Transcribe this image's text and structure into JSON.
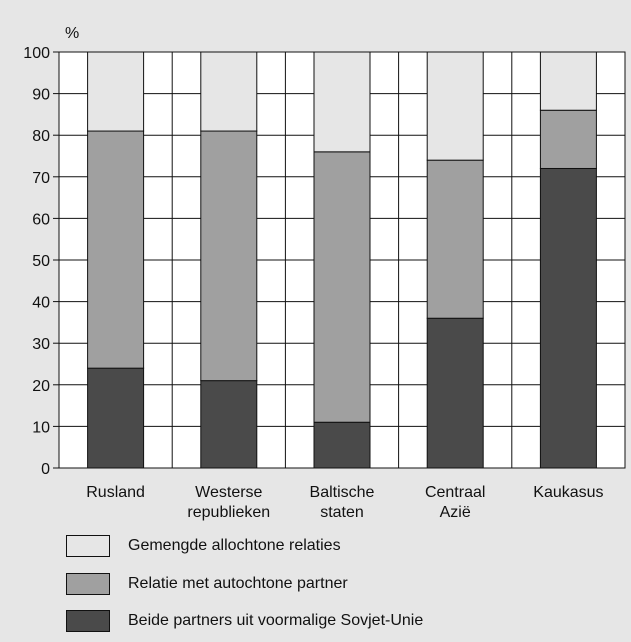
{
  "chart_data": {
    "type": "bar",
    "stacked": true,
    "y_unit": "%",
    "ylim": [
      0,
      100
    ],
    "yticks": [
      0,
      10,
      20,
      30,
      40,
      50,
      60,
      70,
      80,
      90,
      100
    ],
    "grid": true,
    "categories": [
      [
        "Rusland"
      ],
      [
        "Westerse",
        "republieken"
      ],
      [
        "Baltische",
        "staten"
      ],
      [
        "Centraal",
        "Azië"
      ],
      [
        "Kaukasus"
      ]
    ],
    "series": [
      {
        "name": "Beide partners uit voormalige Sovjet-Unie",
        "color": "#4a4a4a",
        "values": [
          24,
          21,
          11,
          36,
          72
        ]
      },
      {
        "name": "Relatie met autochtone partner",
        "color": "#a0a0a0",
        "values": [
          57,
          60,
          65,
          38,
          14
        ]
      },
      {
        "name": "Gemengde allochtone relaties",
        "color": "#e6e6e6",
        "values": [
          19,
          19,
          24,
          26,
          14
        ]
      }
    ],
    "legend": {
      "position": "bottom",
      "order": [
        "Gemengde allochtone relaties",
        "Relatie met autochtone partner",
        "Beide partners uit voormalige Sovjet-Unie"
      ]
    }
  }
}
